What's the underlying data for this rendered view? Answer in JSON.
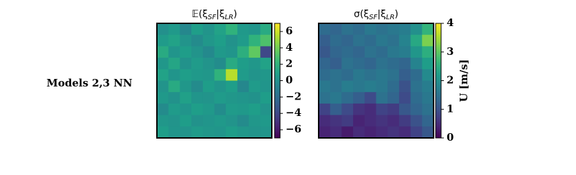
{
  "row_label": "Models 2,3 NN",
  "chart_data": [
    {
      "type": "heatmap",
      "title": [
        "𝔼(ξ",
        "SF",
        "|ξ",
        "LR",
        ")"
      ],
      "colormap": "viridis",
      "zlim": [
        -7,
        7
      ],
      "zticks": [
        {
          "value": 6,
          "label": "6"
        },
        {
          "value": 4,
          "label": "4"
        },
        {
          "value": 2,
          "label": "2"
        },
        {
          "value": 0,
          "label": "0"
        },
        {
          "value": -2,
          "label": "−2"
        },
        {
          "value": -4,
          "label": "−4"
        },
        {
          "value": -6,
          "label": "−6"
        }
      ],
      "values": [
        [
          0,
          0.5,
          -0.5,
          0.8,
          0.2,
          1,
          2,
          0.5,
          0.3,
          1.5
        ],
        [
          0.6,
          1,
          0.2,
          -0.3,
          0.4,
          0.8,
          0.1,
          0.6,
          2,
          3
        ],
        [
          1.5,
          0.3,
          0.7,
          0.2,
          -0.4,
          0.5,
          0.3,
          1.8,
          3.5,
          -4
        ],
        [
          0.4,
          1.2,
          0.1,
          0.6,
          0.2,
          -0.2,
          1.5,
          0.7,
          0.4,
          1
        ],
        [
          1,
          0.3,
          0.8,
          0.5,
          0.4,
          2,
          5.5,
          0.6,
          0.2,
          0.4
        ],
        [
          0.2,
          1.5,
          0.4,
          -0.3,
          0.7,
          0.3,
          0.8,
          -0.5,
          0.6,
          0.3
        ],
        [
          0.5,
          0.1,
          0.9,
          0.3,
          0.2,
          0.6,
          0.4,
          0.3,
          0.1,
          0.7
        ],
        [
          -0.3,
          0.6,
          0.3,
          0.8,
          0.5,
          -0.2,
          0.6,
          0.5,
          0.8,
          0.2
        ],
        [
          0.4,
          0.2,
          0.7,
          0.1,
          0.3,
          0.5,
          0.2,
          -0.3,
          0.4,
          0.5
        ],
        [
          0.8,
          0.3,
          0.2,
          0.6,
          0.4,
          0.3,
          0.7,
          0.4,
          0.2,
          0.3
        ]
      ]
    },
    {
      "type": "heatmap",
      "title": [
        "σ(ξ",
        "SF",
        "|ξ",
        "LR",
        ")"
      ],
      "colormap": "viridis",
      "zlim": [
        0,
        4
      ],
      "zticks": [
        0,
        1,
        2,
        3,
        4
      ],
      "colorbar_label": "U [m/s]",
      "values": [
        [
          1.4,
          1.3,
          1.5,
          1.4,
          1.6,
          1.5,
          1.6,
          1.7,
          2.0,
          2.6
        ],
        [
          1.2,
          1.4,
          1.3,
          1.5,
          1.4,
          1.6,
          1.5,
          1.8,
          2.4,
          3.2
        ],
        [
          1.1,
          1.3,
          1.4,
          1.3,
          1.5,
          1.4,
          1.6,
          1.7,
          2.1,
          2.5
        ],
        [
          1.3,
          1.2,
          1.5,
          1.4,
          1.3,
          1.5,
          1.4,
          1.3,
          1.8,
          2.2
        ],
        [
          1.4,
          1.5,
          1.4,
          1.6,
          1.5,
          1.6,
          1.5,
          1.2,
          1.4,
          1.9
        ],
        [
          1.6,
          1.5,
          1.7,
          1.6,
          1.7,
          1.6,
          1.4,
          1.0,
          1.5,
          1.7
        ],
        [
          1.5,
          1.6,
          1.4,
          1.2,
          0.9,
          1.5,
          1.3,
          0.9,
          1.4,
          1.6
        ],
        [
          0.8,
          1.2,
          0.9,
          0.6,
          0.5,
          0.8,
          0.7,
          1.1,
          1.3,
          1.5
        ],
        [
          0.5,
          0.6,
          0.7,
          0.4,
          0.5,
          0.6,
          0.5,
          0.7,
          1.0,
          1.3
        ],
        [
          0.4,
          0.5,
          0.3,
          0.5,
          0.4,
          0.5,
          0.6,
          0.5,
          0.8,
          1.1
        ]
      ]
    }
  ]
}
